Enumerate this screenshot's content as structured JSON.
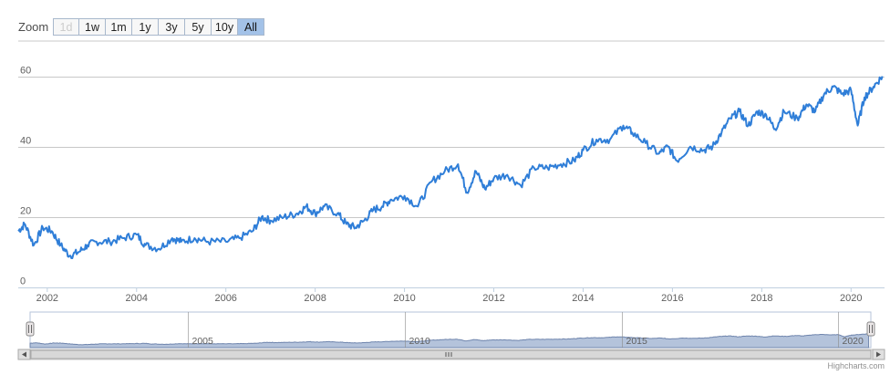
{
  "range_selector": {
    "label": "Zoom",
    "buttons": [
      "1d",
      "1w",
      "1m",
      "1y",
      "3y",
      "5y",
      "10y",
      "All"
    ],
    "disabled": "1d",
    "selected": "All"
  },
  "credits": "Highcharts.com",
  "colors": {
    "line": "#2f7ed8",
    "navigator_fill": "#a7b8d5",
    "navigator_line": "#6f85ad",
    "grid": "#c8c8c8"
  },
  "chart_data": {
    "type": "line",
    "title": "",
    "xlabel": "",
    "ylabel": "",
    "xlim": [
      2001.35,
      2020.75
    ],
    "ylim": [
      0,
      70
    ],
    "yticks": [
      0,
      20,
      40,
      60
    ],
    "xticks": [
      2002,
      2004,
      2006,
      2008,
      2010,
      2012,
      2014,
      2016,
      2018,
      2020
    ],
    "grid": true,
    "legend": "none",
    "series": [
      {
        "x": [
          2001.35,
          2001.5,
          2001.7,
          2001.9,
          2002.1,
          2002.3,
          2002.5,
          2002.7,
          2002.9,
          2003.1,
          2003.4,
          2003.7,
          2004.0,
          2004.2,
          2004.5,
          2004.8,
          2005.0,
          2005.3,
          2005.6,
          2006.0,
          2006.3,
          2006.6,
          2006.8,
          2007.0,
          2007.3,
          2007.6,
          2007.8,
          2008.0,
          2008.2,
          2008.5,
          2008.7,
          2008.9,
          2009.1,
          2009.3,
          2009.5,
          2009.7,
          2010.0,
          2010.3,
          2010.6,
          2010.9,
          2011.2,
          2011.4,
          2011.6,
          2011.8,
          2012.0,
          2012.3,
          2012.6,
          2012.9,
          2013.2,
          2013.5,
          2013.8,
          2014.0,
          2014.3,
          2014.6,
          2014.9,
          2015.1,
          2015.4,
          2015.7,
          2015.9,
          2016.1,
          2016.4,
          2016.7,
          2016.9,
          2017.1,
          2017.3,
          2017.5,
          2017.7,
          2017.9,
          2018.1,
          2018.3,
          2018.5,
          2018.8,
          2019.0,
          2019.2,
          2019.4,
          2019.6,
          2019.8,
          2020.0,
          2020.15,
          2020.3,
          2020.5,
          2020.7
        ],
        "y": [
          16,
          18,
          12,
          17,
          16,
          12,
          9,
          10,
          12,
          13,
          13,
          14,
          15,
          12,
          11,
          14,
          13,
          14,
          13,
          13,
          14,
          16,
          20,
          19,
          20,
          21,
          23,
          21,
          23,
          21,
          18,
          17,
          19,
          22,
          23,
          25,
          26,
          23,
          30,
          33,
          35,
          27,
          33,
          28,
          31,
          32,
          29,
          34,
          34,
          35,
          36,
          39,
          42,
          42,
          46,
          44,
          41,
          38,
          40,
          36,
          40,
          39,
          40,
          44,
          48,
          50,
          46,
          50,
          49,
          45,
          50,
          48,
          52,
          50,
          55,
          57,
          55,
          56,
          46,
          54,
          57,
          60
        ]
      }
    ]
  }
}
